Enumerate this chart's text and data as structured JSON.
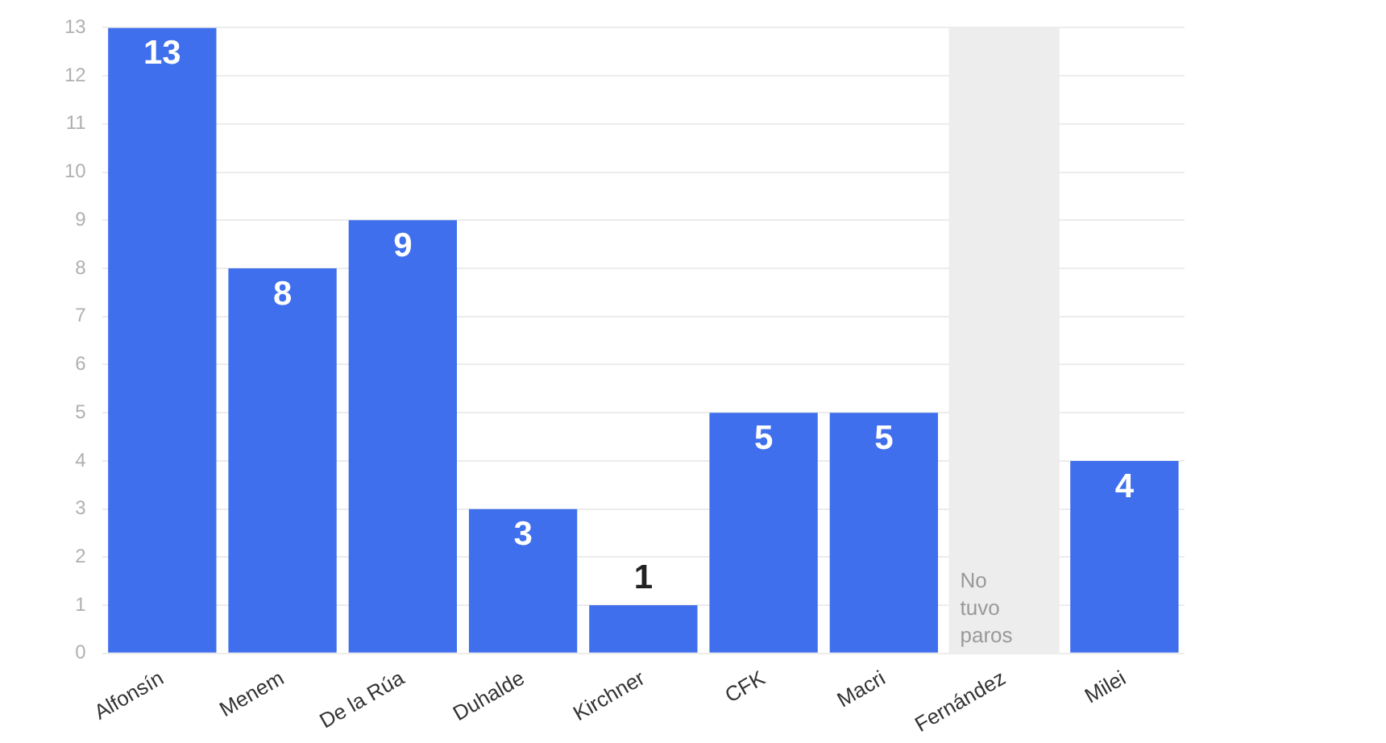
{
  "chart_data": {
    "type": "bar",
    "categories": [
      "Alfonsín",
      "Menem",
      "De la Rúa",
      "Duhalde",
      "Kirchner",
      "CFK",
      "Macri",
      "Fernández",
      "Milei"
    ],
    "values": [
      13,
      8,
      9,
      3,
      1,
      5,
      5,
      0,
      4
    ],
    "value_labels": [
      "13",
      "8",
      "9",
      "3",
      "1",
      "5",
      "5",
      null,
      "4"
    ],
    "color": "#3f6fec",
    "ylim": [
      0,
      13
    ],
    "yticks": [
      0,
      1,
      2,
      3,
      4,
      5,
      6,
      7,
      8,
      9,
      10,
      11,
      12,
      13
    ],
    "grid": "y",
    "legend": false,
    "bands": [
      {
        "axis": "x",
        "from": "Fernández",
        "to": "Fernández",
        "label": "No tuvo paros",
        "color": "#ededed"
      }
    ]
  }
}
